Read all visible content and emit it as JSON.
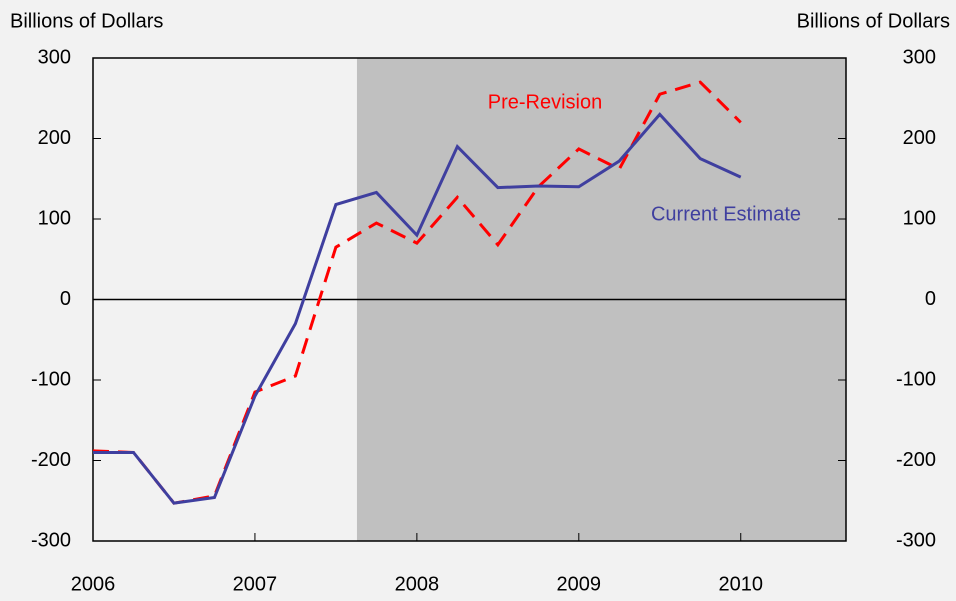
{
  "chart_data": {
    "type": "line",
    "y_label_left": "Billions of Dollars",
    "y_label_right": "Billions of Dollars",
    "x": [
      2006,
      2006.25,
      2006.5,
      2006.75,
      2007,
      2007.25,
      2007.5,
      2007.75,
      2008,
      2008.25,
      2008.5,
      2008.75,
      2009,
      2009.25,
      2009.5,
      2009.75,
      2010
    ],
    "series": [
      {
        "name": "Pre-Revision",
        "color": "#ff0000",
        "dash": true,
        "values": [
          -188,
          -190,
          -253,
          -244,
          -115,
          -95,
          65,
          95,
          70,
          127,
          68,
          140,
          187,
          162,
          255,
          270,
          220
        ]
      },
      {
        "name": "Current Estimate",
        "color": "#3f3f9f",
        "dash": false,
        "values": [
          -190,
          -190,
          -253,
          -246,
          -120,
          -30,
          118,
          133,
          80,
          190,
          139,
          141,
          140,
          172,
          230,
          175,
          152
        ]
      }
    ],
    "shaded_region": [
      2007.63,
      2010.65
    ],
    "xlim": [
      2006,
      2010.65
    ],
    "xticks": [
      2006,
      2007,
      2008,
      2009,
      2010
    ],
    "ylim": [
      -300,
      300
    ],
    "yticks": [
      -300,
      -200,
      -100,
      0,
      100,
      200,
      300
    ],
    "y2lim": [
      -300,
      300
    ],
    "y2ticks": [
      -300,
      -200,
      -100,
      0,
      100,
      200,
      300
    ]
  }
}
